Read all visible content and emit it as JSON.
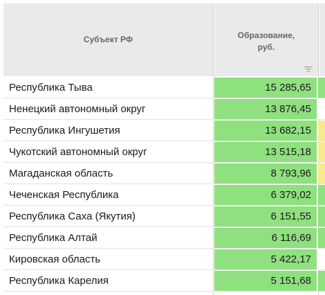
{
  "header": {
    "region_label": "Субъект РФ",
    "value_label_line1": "Образование,",
    "value_label_line2": "руб.",
    "sort_icon": "sort-lines-icon"
  },
  "colors": {
    "value_fill": "#8fe07f",
    "extra_yellow": "#f7e98e",
    "extra_green": "#8fe07f",
    "header_bg": "#eaeaea"
  },
  "rows": [
    {
      "region": "Республика Тыва",
      "value": "15 285,65",
      "extra_color": "#8fe07f"
    },
    {
      "region": "Ненецкий автономный округ",
      "value": "13 876,45",
      "extra_color": "#ffffff"
    },
    {
      "region": "Республика Ингушетия",
      "value": "13 682,15",
      "extra_color": "#f7e98e"
    },
    {
      "region": "Чукотский автономный округ",
      "value": "13 515,18",
      "extra_color": "#f7e98e"
    },
    {
      "region": "Магаданская область",
      "value": "8 793,96",
      "extra_color": "#f7e98e"
    },
    {
      "region": "Чеченская Республика",
      "value": "6 379,02",
      "extra_color": "#8fe07f"
    },
    {
      "region": "Республика Саха (Якутия)",
      "value": "6 151,55",
      "extra_color": "#8fe07f"
    },
    {
      "region": "Республика Алтай",
      "value": "6 116,69",
      "extra_color": "#8fe07f"
    },
    {
      "region": "Кировская область",
      "value": "5 422,17",
      "extra_color": "#ffffff"
    },
    {
      "region": "Республика Карелия",
      "value": "5 151,68",
      "extra_color": "#8fe07f"
    }
  ]
}
